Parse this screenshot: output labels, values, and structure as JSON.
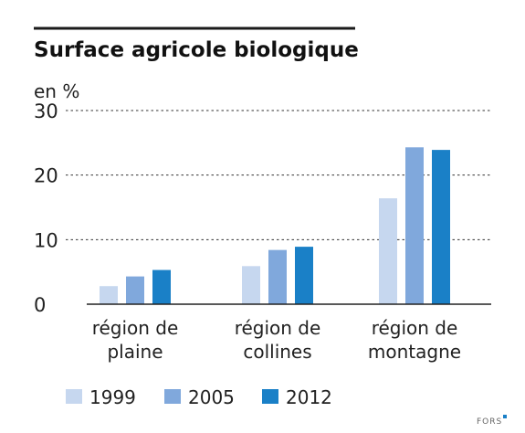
{
  "chart_data": {
    "type": "bar",
    "title": "Surface agricole biologique",
    "unit_label": "en %",
    "categories": [
      [
        "région de",
        "plaine"
      ],
      [
        "région de",
        "collines"
      ],
      [
        "région de",
        "montagne"
      ]
    ],
    "series": [
      {
        "name": "1999",
        "values": [
          2.8,
          5.9,
          16.4
        ],
        "color": "#c6d7ef"
      },
      {
        "name": "2005",
        "values": [
          4.3,
          8.4,
          24.3
        ],
        "color": "#80a8dc"
      },
      {
        "name": "2012",
        "values": [
          5.3,
          8.9,
          23.9
        ],
        "color": "#1a80c7"
      }
    ],
    "yticks": [
      0,
      10,
      20,
      30
    ],
    "ylim": [
      0,
      30
    ],
    "grid": true,
    "legend_position": "bottom-left"
  },
  "source": "FORS"
}
